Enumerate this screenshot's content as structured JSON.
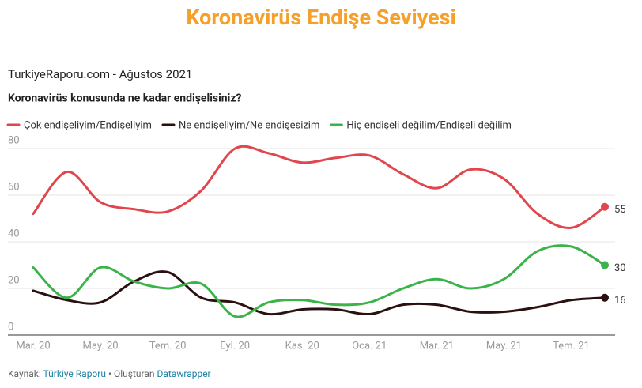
{
  "chart_data": {
    "type": "line",
    "title": "Koronavirüs Endişe Seviyesi",
    "subtitle": "TurkiyeRaporu.com - Ağustos 2021",
    "question": "Koronavirüs konusunda ne kadar endişelisiniz?",
    "source_label": "Kaynak:",
    "source": "Türkiye Raporu",
    "credit_label": "• Oluşturan",
    "credit": "Datawrapper",
    "categories": [
      "Mar. 20",
      null,
      "May. 20",
      null,
      "Tem. 20",
      null,
      "Eyl. 20",
      null,
      "Kas. 20",
      null,
      "Oca. 21",
      null,
      "Mar. 21",
      null,
      "May. 21",
      null,
      "Tem. 21",
      null
    ],
    "series": [
      {
        "name": "Çok endişeliyim/Endişeliyim",
        "color": "#e0464c",
        "values": [
          52,
          70,
          57,
          54,
          53,
          62,
          80,
          78,
          74,
          76,
          77,
          69,
          63,
          71,
          67,
          52,
          46,
          55
        ]
      },
      {
        "name": "Ne endişeliyim/Ne endişesizim",
        "color": "#2a1010",
        "values": [
          19,
          15,
          14,
          23,
          27,
          16,
          14,
          9,
          11,
          11,
          9,
          13,
          13,
          10,
          10,
          12,
          15,
          16
        ]
      },
      {
        "name": "Hiç endişeli değilim/Endişeli değilim",
        "color": "#3cb34a",
        "values": [
          29,
          16,
          29,
          23,
          20,
          22,
          8,
          14,
          15,
          13,
          14,
          20,
          24,
          20,
          24,
          36,
          38,
          30
        ]
      }
    ],
    "ylim": [
      0,
      80
    ],
    "yticks": [
      0,
      20,
      40,
      60,
      80
    ],
    "grid": true
  }
}
